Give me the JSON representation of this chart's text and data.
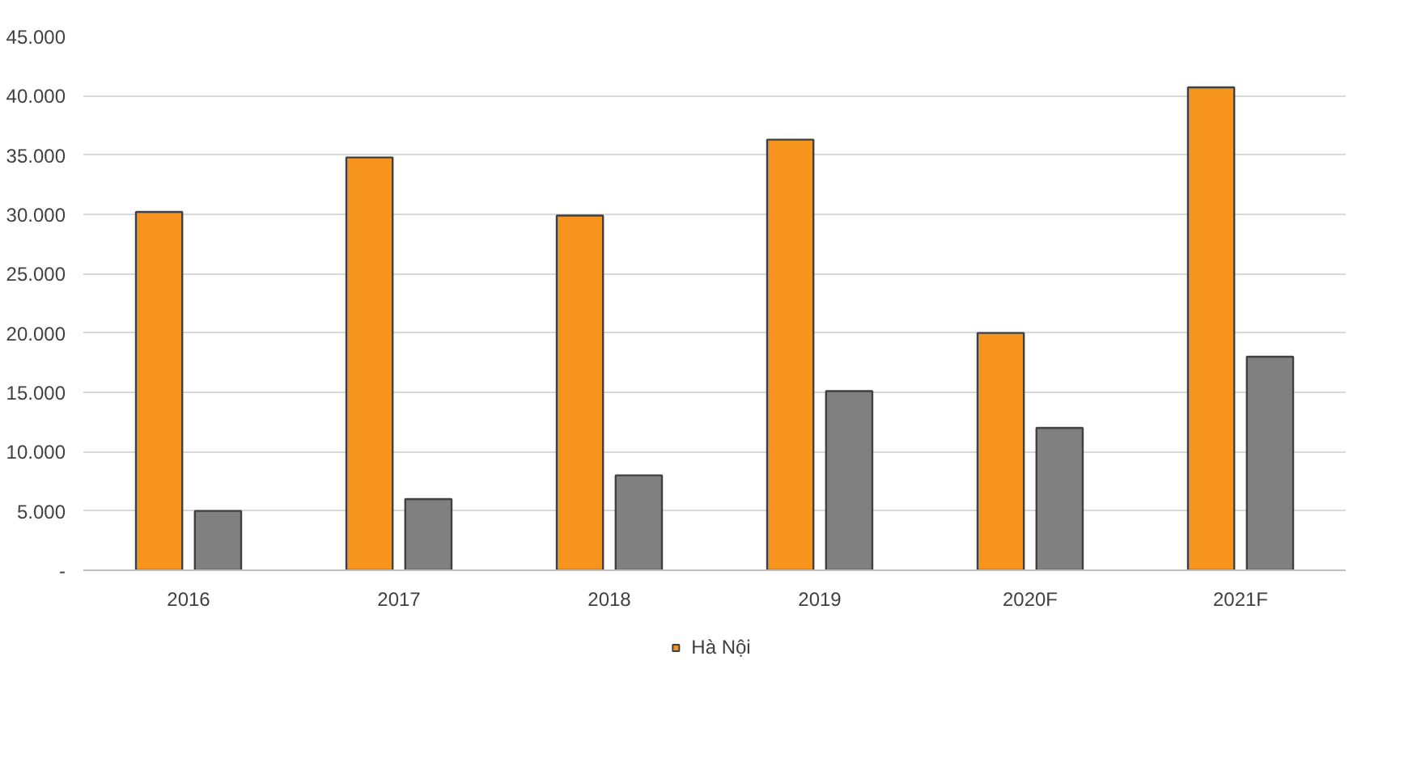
{
  "chart_data": {
    "type": "bar",
    "categories": [
      "2016",
      "2017",
      "2018",
      "2019",
      "2020F",
      "2021F"
    ],
    "series": [
      {
        "name": "Hà Nội",
        "color": "#f7941d",
        "values": [
          30200,
          34800,
          29900,
          36300,
          20000,
          40700
        ]
      },
      {
        "color": "#808080",
        "values": [
          5000,
          6000,
          8000,
          15100,
          12000,
          18000
        ]
      }
    ],
    "ylim": [
      0,
      45000
    ],
    "yticks": [
      {
        "value": 0,
        "label": "-"
      },
      {
        "value": 5000,
        "label": "5.000"
      },
      {
        "value": 10000,
        "label": "10.000"
      },
      {
        "value": 15000,
        "label": "15.000"
      },
      {
        "value": 20000,
        "label": "20.000"
      },
      {
        "value": 25000,
        "label": "25.000"
      },
      {
        "value": 30000,
        "label": "30.000"
      },
      {
        "value": 35000,
        "label": "35.000"
      },
      {
        "value": 40000,
        "label": "40.000"
      },
      {
        "value": 45000,
        "label": "45.000"
      }
    ],
    "grid": "y",
    "legend": "bottom"
  }
}
